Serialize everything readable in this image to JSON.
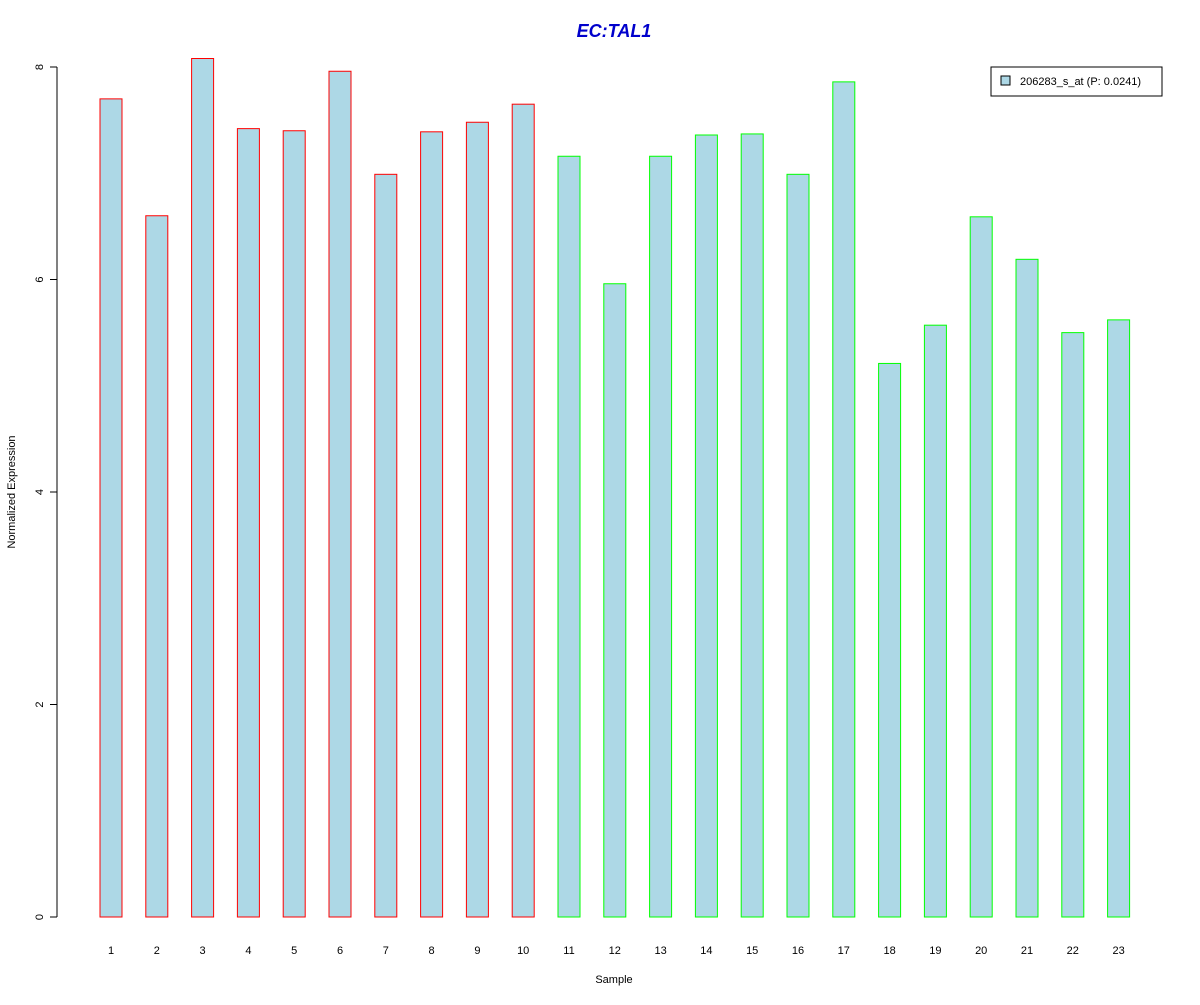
{
  "chart_data": {
    "type": "bar",
    "title": "EC:TAL1",
    "xlabel": "Sample",
    "ylabel": "Normalized Expression",
    "ylim": [
      0,
      8
    ],
    "yticks": [
      0,
      2,
      4,
      6,
      8
    ],
    "grid": false,
    "legend_position": "top-right",
    "categories": [
      "1",
      "2",
      "3",
      "4",
      "5",
      "6",
      "7",
      "8",
      "9",
      "10",
      "11",
      "12",
      "13",
      "14",
      "15",
      "16",
      "17",
      "18",
      "19",
      "20",
      "21",
      "22",
      "23"
    ],
    "series": [
      {
        "name": "206283_s_at (P: 0.0241)",
        "values": [
          7.7,
          6.6,
          8.08,
          7.42,
          7.4,
          7.96,
          6.99,
          7.39,
          7.48,
          7.65,
          7.16,
          5.96,
          7.16,
          7.36,
          7.37,
          6.99,
          7.86,
          5.21,
          5.57,
          6.59,
          6.19,
          5.5,
          5.62
        ]
      }
    ],
    "group_of_sample": [
      "red",
      "red",
      "red",
      "red",
      "red",
      "red",
      "red",
      "red",
      "red",
      "red",
      "green",
      "green",
      "green",
      "green",
      "green",
      "green",
      "green",
      "green",
      "green",
      "green",
      "green",
      "green",
      "green"
    ],
    "colors": {
      "fill": "#add8e6",
      "red_border": "#ff0000",
      "green_border": "#00ff00",
      "title": "#0000cc",
      "axis": "#000000"
    }
  }
}
